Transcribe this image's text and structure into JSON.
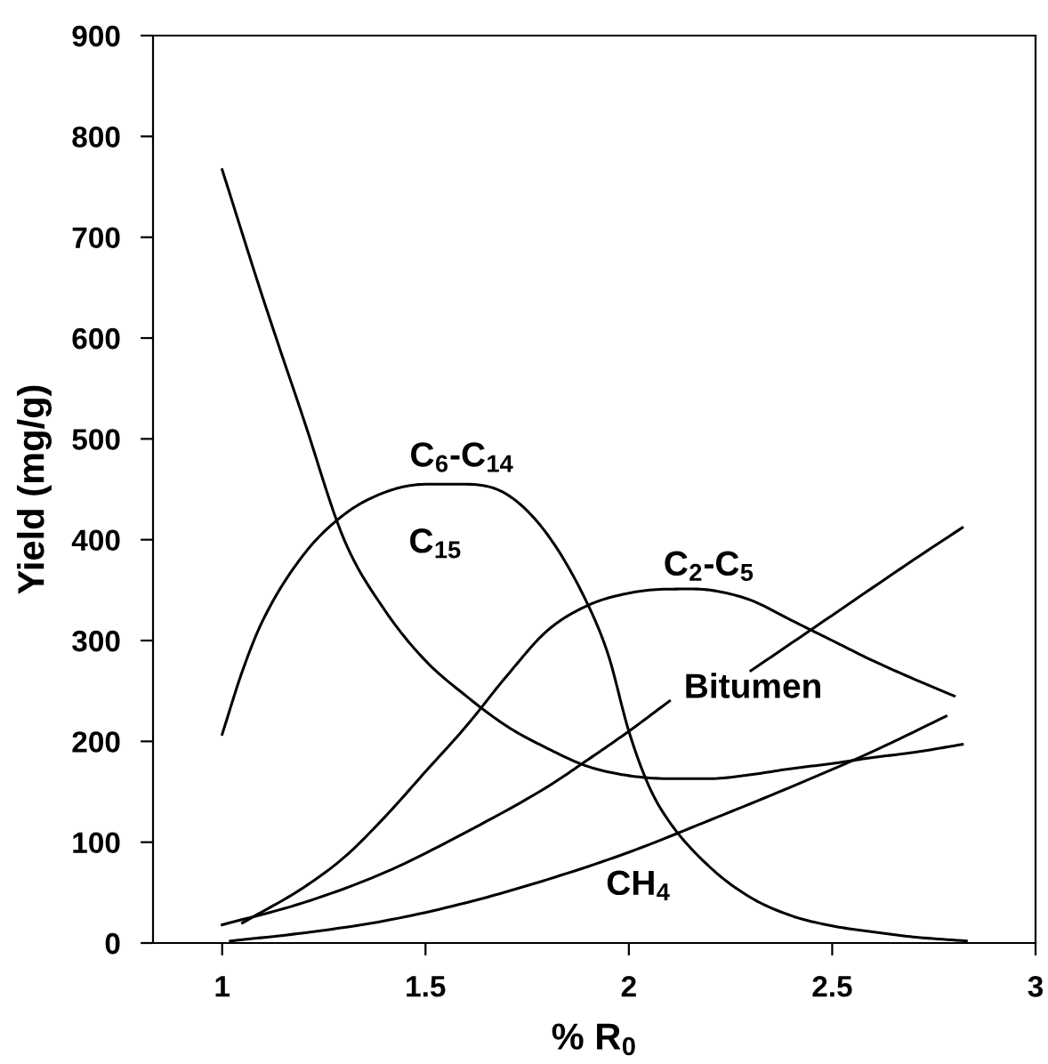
{
  "chart_data": {
    "type": "line",
    "xlabel": "% R$_{0}$",
    "ylabel": "Yield (mg/g)",
    "xlim": [
      0.83,
      3
    ],
    "xticks": [
      1,
      1.5,
      2,
      2.5,
      3
    ],
    "ylim": [
      0,
      900
    ],
    "yticks": [
      0,
      100,
      200,
      300,
      400,
      500,
      600,
      700,
      800,
      900
    ],
    "grid": false,
    "marker": "none",
    "line_style": "solid",
    "series": [
      {
        "color": "#000000",
        "x": [
          1,
          1.1,
          1.2,
          1.3,
          1.4,
          1.5,
          1.6,
          1.7,
          1.8,
          1.9,
          2.0,
          2.1,
          2.2,
          2.3,
          2.4,
          2.5,
          2.6,
          2.7,
          2.82
        ],
        "values": [
          767,
          640,
          520,
          400,
          330,
          280,
          245,
          215,
          193,
          175,
          166,
          163,
          163,
          167,
          173,
          178,
          184,
          189,
          197
        ]
      },
      {
        "color": "#000000",
        "x": [
          1,
          1.05,
          1.1,
          1.2,
          1.3,
          1.4,
          1.5,
          1.6,
          1.7,
          1.8,
          1.9,
          1.95,
          2.0,
          2.05,
          2.1,
          2.2,
          2.3,
          2.4,
          2.5,
          2.6,
          2.7,
          2.83
        ],
        "values": [
          207,
          270,
          320,
          385,
          425,
          447,
          455,
          455,
          445,
          405,
          335,
          285,
          210,
          155,
          120,
          75,
          45,
          27,
          17,
          11,
          6,
          2
        ]
      },
      {
        "color": "#000000",
        "x": [
          1.05,
          1.2,
          1.3,
          1.4,
          1.5,
          1.6,
          1.7,
          1.8,
          1.9,
          2.0,
          2.1,
          2.2,
          2.3,
          2.4,
          2.5,
          2.6,
          2.7,
          2.8
        ],
        "values": [
          20,
          55,
          85,
          125,
          170,
          215,
          265,
          310,
          335,
          347,
          351,
          350,
          340,
          320,
          300,
          280,
          262,
          245
        ]
      },
      {
        "color": "#000000",
        "x": [
          1,
          1.2,
          1.4,
          1.6,
          1.8,
          1.9,
          2.0,
          2.1,
          2.2,
          2.3,
          2.5,
          2.7,
          2.82
        ],
        "values": [
          18,
          40,
          70,
          110,
          155,
          182,
          210,
          240,
          null,
          270,
          325,
          380,
          412
        ]
      },
      {
        "color": "#000000",
        "x": [
          1.02,
          1.2,
          1.4,
          1.6,
          1.8,
          2.0,
          2.2,
          2.4,
          2.6,
          2.78
        ],
        "values": [
          2,
          10,
          22,
          40,
          63,
          90,
          122,
          155,
          190,
          225
        ]
      }
    ],
    "annotations": [
      "C$_{15}$",
      "C$_{6}$-C$_{14}$",
      "C$_{2}$-C$_{5}$",
      "Bitumen",
      "CH$_{4}$"
    ]
  }
}
